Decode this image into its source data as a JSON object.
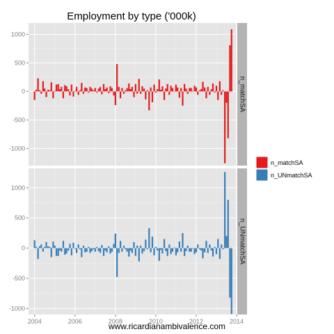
{
  "chart_data": {
    "type": "bar",
    "title": "Employment by type ('000k)",
    "xlabel": "www.ricardianambivalence.com",
    "ylabel": "",
    "x_unit": "year",
    "xlim": [
      2003.7,
      2014.0
    ],
    "x_ticks": [
      2004,
      2006,
      2008,
      2010,
      2012,
      2014
    ],
    "x_tick_labels": [
      "2004",
      "2006",
      "2008",
      "2010",
      "2012",
      "2014"
    ],
    "grid": true,
    "legend_position": "right",
    "facets": [
      {
        "strip": "n_matchSA",
        "ylim": [
          -1300,
          1200
        ],
        "y_ticks": [
          -1000,
          -500,
          0,
          500,
          1000
        ],
        "y_tick_labels": [
          "-1000",
          "-500",
          "0",
          "500",
          "1000"
        ]
      },
      {
        "strip": "n_UNmatchSA",
        "ylim": [
          -1100,
          1320
        ],
        "y_ticks": [
          -1000,
          -500,
          0,
          500,
          1000
        ],
        "y_tick_labels": [
          "-1000",
          "-500",
          "0",
          "500",
          "1000"
        ]
      }
    ],
    "series": [
      {
        "name": "n_matchSA",
        "facet": 0,
        "color": "#e41a1c"
      },
      {
        "name": "n_UNmatchSA",
        "facet": 1,
        "color": "#377eb8"
      }
    ],
    "x": [
      2004.0,
      2004.08,
      2004.17,
      2004.25,
      2004.33,
      2004.42,
      2004.5,
      2004.58,
      2004.67,
      2004.75,
      2004.83,
      2004.92,
      2005.0,
      2005.08,
      2005.17,
      2005.25,
      2005.33,
      2005.42,
      2005.5,
      2005.58,
      2005.67,
      2005.75,
      2005.83,
      2005.92,
      2006.0,
      2006.08,
      2006.17,
      2006.25,
      2006.33,
      2006.42,
      2006.5,
      2006.58,
      2006.67,
      2006.75,
      2006.83,
      2006.92,
      2007.0,
      2007.08,
      2007.17,
      2007.25,
      2007.33,
      2007.42,
      2007.5,
      2007.58,
      2007.67,
      2007.75,
      2007.83,
      2007.92,
      2008.0,
      2008.08,
      2008.17,
      2008.25,
      2008.33,
      2008.42,
      2008.5,
      2008.58,
      2008.67,
      2008.75,
      2008.83,
      2008.92,
      2009.0,
      2009.08,
      2009.17,
      2009.25,
      2009.33,
      2009.42,
      2009.5,
      2009.58,
      2009.67,
      2009.75,
      2009.83,
      2009.92,
      2010.0,
      2010.08,
      2010.17,
      2010.25,
      2010.33,
      2010.42,
      2010.5,
      2010.58,
      2010.67,
      2010.75,
      2010.83,
      2010.92,
      2011.0,
      2011.08,
      2011.17,
      2011.25,
      2011.33,
      2011.42,
      2011.5,
      2011.58,
      2011.67,
      2011.75,
      2011.83,
      2011.92,
      2012.0,
      2012.08,
      2012.17,
      2012.25,
      2012.33,
      2012.42,
      2012.5,
      2012.58,
      2012.67,
      2012.75,
      2012.83,
      2012.92,
      2013.0,
      2013.08,
      2013.17,
      2013.25,
      2013.33,
      2013.42,
      2013.5,
      2013.58,
      2013.67
    ],
    "values_match": [
      -150,
      30,
      230,
      20,
      -40,
      180,
      50,
      -100,
      30,
      20,
      160,
      -120,
      10,
      120,
      130,
      40,
      80,
      -120,
      110,
      90,
      40,
      -70,
      120,
      -90,
      10,
      80,
      -60,
      20,
      150,
      -40,
      70,
      60,
      -20,
      80,
      50,
      20,
      60,
      -20,
      50,
      80,
      -50,
      130,
      40,
      70,
      -30,
      90,
      60,
      -70,
      -240,
      480,
      80,
      -120,
      60,
      -40,
      20,
      60,
      140,
      40,
      80,
      -100,
      130,
      -40,
      220,
      -40,
      90,
      50,
      -140,
      20,
      -330,
      70,
      -190,
      120,
      -20,
      40,
      210,
      30,
      90,
      -150,
      50,
      130,
      -60,
      100,
      60,
      -10,
      120,
      70,
      -110,
      60,
      -250,
      130,
      50,
      -40,
      60,
      60,
      10,
      100,
      70,
      -60,
      20,
      40,
      170,
      70,
      -120,
      80,
      -60,
      40,
      140,
      -20,
      100,
      -150,
      180,
      -60,
      20,
      210,
      -120,
      30,
      -100
    ],
    "tail_match": [
      {
        "x": 2013.42,
        "value": -1260
      },
      {
        "x": 2013.5,
        "value": -200
      },
      {
        "x": 2013.58,
        "value": -820
      },
      {
        "x": 2013.67,
        "value": 810
      },
      {
        "x": 2013.75,
        "value": 1090
      }
    ],
    "values_unmatch": [
      130,
      20,
      -180,
      30,
      60,
      -60,
      20,
      100,
      30,
      20,
      -150,
      110,
      40,
      -130,
      -130,
      -40,
      -60,
      120,
      -110,
      -90,
      -40,
      70,
      -120,
      90,
      -10,
      -80,
      60,
      -20,
      -150,
      40,
      -70,
      -60,
      20,
      -80,
      -50,
      -20,
      -60,
      20,
      -50,
      -80,
      50,
      -130,
      -40,
      -70,
      30,
      -90,
      -60,
      70,
      240,
      -480,
      -80,
      120,
      -60,
      40,
      -20,
      -60,
      -140,
      -40,
      -80,
      100,
      -130,
      40,
      -220,
      40,
      -90,
      -50,
      140,
      -20,
      330,
      -70,
      190,
      -120,
      20,
      -40,
      -210,
      -30,
      -90,
      150,
      -50,
      -130,
      60,
      -100,
      -60,
      10,
      -120,
      -70,
      110,
      -60,
      250,
      -130,
      -50,
      40,
      -60,
      -60,
      -10,
      -100,
      -70,
      60,
      -20,
      -40,
      -170,
      -70,
      120,
      -80,
      60,
      -40,
      -140,
      20,
      -100,
      150,
      -180,
      60,
      -20,
      -210,
      120,
      -30,
      100
    ],
    "tail_unmatch": [
      {
        "x": 2013.42,
        "value": 1260
      },
      {
        "x": 2013.5,
        "value": 200
      },
      {
        "x": 2013.58,
        "value": 800
      },
      {
        "x": 2013.67,
        "value": -820
      },
      {
        "x": 2013.75,
        "value": -1090
      }
    ]
  }
}
